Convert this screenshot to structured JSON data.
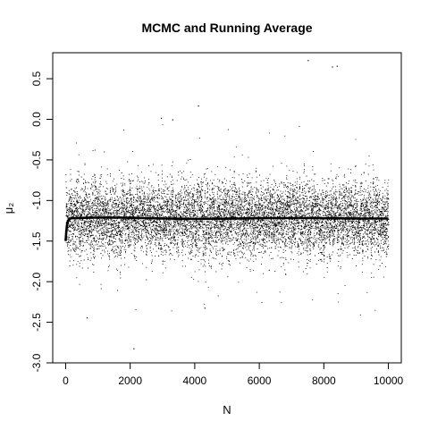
{
  "chart_data": {
    "type": "scatter",
    "title": "MCMC and Running Average",
    "xlabel": "N",
    "ylabel": "μ₂",
    "xlim": [
      -400,
      10400
    ],
    "ylim": [
      -3.0,
      0.82
    ],
    "x_ticks": [
      0,
      2000,
      4000,
      6000,
      8000,
      10000
    ],
    "x_tick_labels": [
      "0",
      "2000",
      "4000",
      "6000",
      "8000",
      "10000"
    ],
    "y_ticks": [
      -3.0,
      -2.5,
      -2.0,
      -1.5,
      -1.0,
      -0.5,
      0.0,
      0.5
    ],
    "y_tick_labels": [
      "-3.0",
      "-2.5",
      "-2.0",
      "-1.5",
      "-1.0",
      "-0.5",
      "0.0",
      "0.5"
    ],
    "grid": false,
    "series": [
      {
        "kind": "mcmc-samples",
        "n": 10000,
        "center": -1.22,
        "typical_range": [
          -1.95,
          -0.65
        ],
        "outliers": [
          {
            "x": 2950,
            "y": 0.02
          },
          {
            "x": 3300,
            "y": 0.0
          },
          {
            "x": 4100,
            "y": 0.17
          },
          {
            "x": 7500,
            "y": 0.73
          },
          {
            "x": 8250,
            "y": 0.65
          },
          {
            "x": 8400,
            "y": 0.66
          },
          {
            "x": 650,
            "y": -2.44
          },
          {
            "x": 4300,
            "y": -2.32
          },
          {
            "x": 2100,
            "y": -2.82
          }
        ]
      },
      {
        "kind": "running-average",
        "start": -1.5,
        "converged_value": -1.22
      }
    ]
  }
}
